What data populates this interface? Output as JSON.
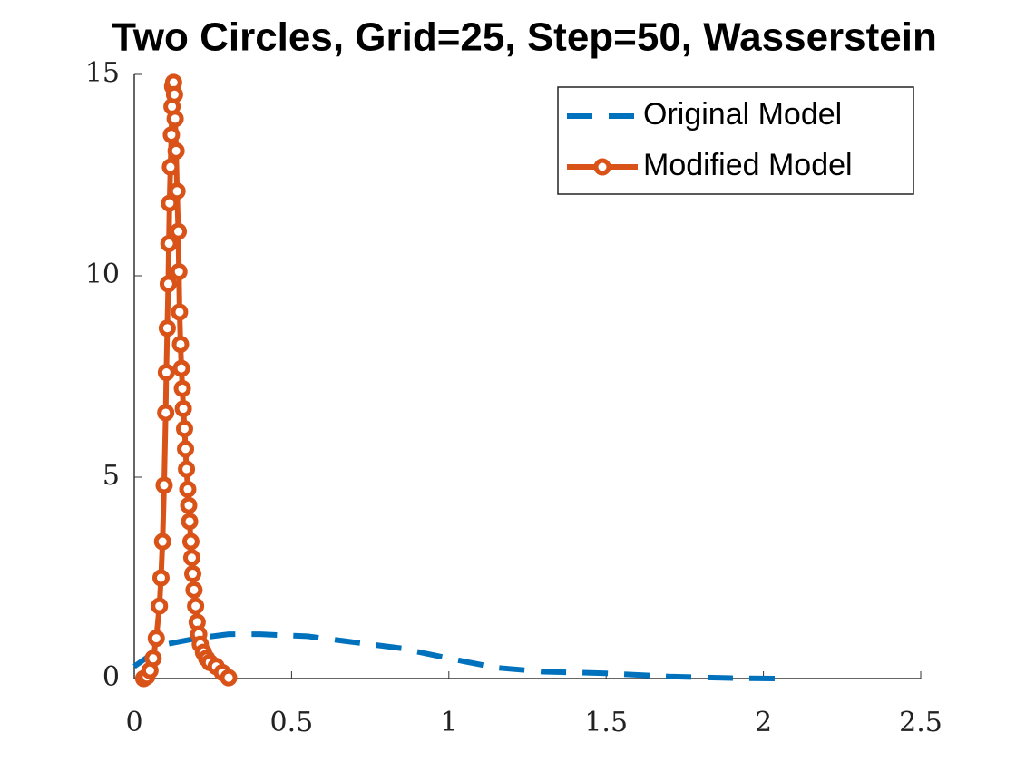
{
  "chart_data": {
    "type": "line",
    "title": "Two Circles, Grid=25, Step=50, Wasserstein",
    "xlim": [
      0,
      2.5
    ],
    "xticks": [
      0,
      0.5,
      1,
      1.5,
      2,
      2.5
    ],
    "ylim": [
      0,
      15
    ],
    "yticks": [
      0,
      5,
      10,
      15
    ],
    "legend": "northeast",
    "series": [
      {
        "name": "Original Model",
        "color": "#0072bd",
        "linestyle": "dashed",
        "marker": null,
        "x": [
          0,
          0.1,
          0.2,
          0.3,
          0.4,
          0.55,
          0.7,
          0.85,
          1.0,
          1.15,
          1.3,
          1.5,
          1.7,
          1.9,
          2.05
        ],
        "values": [
          0.3,
          0.85,
          1.0,
          1.1,
          1.1,
          1.05,
          0.9,
          0.75,
          0.5,
          0.27,
          0.17,
          0.13,
          0.05,
          0.01,
          0.0
        ]
      },
      {
        "name": "Modified Model",
        "color": "#d95319",
        "linestyle": "solid",
        "marker": "o",
        "x": [
          0.03,
          0.04,
          0.05,
          0.06,
          0.07,
          0.08,
          0.085,
          0.09,
          0.095,
          0.1,
          0.102,
          0.105,
          0.108,
          0.11,
          0.112,
          0.115,
          0.118,
          0.12,
          0.122,
          0.125,
          0.128,
          0.13,
          0.133,
          0.136,
          0.14,
          0.142,
          0.144,
          0.147,
          0.15,
          0.153,
          0.156,
          0.16,
          0.163,
          0.166,
          0.17,
          0.173,
          0.176,
          0.18,
          0.183,
          0.186,
          0.19,
          0.195,
          0.2,
          0.205,
          0.21,
          0.22,
          0.23,
          0.24,
          0.26,
          0.28,
          0.3
        ],
        "values": [
          0,
          0.05,
          0.2,
          0.5,
          1.0,
          1.8,
          2.5,
          3.4,
          4.8,
          6.6,
          7.6,
          8.7,
          9.8,
          10.8,
          11.8,
          12.7,
          13.5,
          14.2,
          14.7,
          14.8,
          14.5,
          13.9,
          13.1,
          12.1,
          11.1,
          10.1,
          9.1,
          8.3,
          7.7,
          7.2,
          6.7,
          6.2,
          5.7,
          5.2,
          4.7,
          4.3,
          3.9,
          3.4,
          3.0,
          2.6,
          2.2,
          1.8,
          1.4,
          1.1,
          0.85,
          0.65,
          0.5,
          0.4,
          0.3,
          0.15,
          0.02
        ]
      }
    ]
  }
}
